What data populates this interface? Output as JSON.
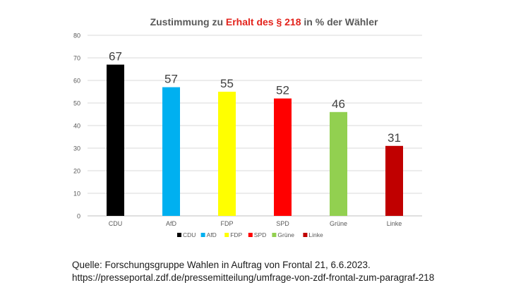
{
  "chart_data": {
    "type": "bar",
    "title_parts": [
      {
        "text": "Zustimmung zu ",
        "highlight": false
      },
      {
        "text": "Erhalt des § 218",
        "highlight": true
      },
      {
        "text": " in % der  Wähler",
        "highlight": false
      }
    ],
    "categories": [
      "CDU",
      "AfD",
      "FDP",
      "SPD",
      "Grüne",
      "Linke"
    ],
    "values": [
      67,
      57,
      55,
      52,
      46,
      31
    ],
    "colors": [
      "#000000",
      "#00b0f0",
      "#ffff00",
      "#ff0000",
      "#92d050",
      "#c00000"
    ],
    "yticks": [
      "0",
      "10",
      "20",
      "30",
      "40",
      "50",
      "60",
      "70",
      "80"
    ],
    "ylim": [
      0,
      80
    ],
    "grid": true,
    "legend_position": "bottom",
    "legend": [
      "CDU",
      "AfD",
      "FDP",
      "SPD",
      "Grüne",
      "Linke"
    ],
    "title_highlight_color": "#e3231c"
  },
  "source": {
    "line1": "Quelle: Forschungsgruppe Wahlen in Auftrag von Frontal 21, 6.6.2023.",
    "line2": "https://presseportal.zdf.de/pressemitteilung/umfrage-von-zdf-frontal-zum-paragraf-218"
  }
}
